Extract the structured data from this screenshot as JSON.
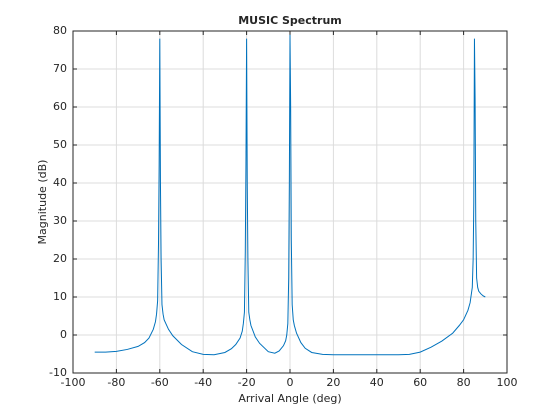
{
  "chart_data": {
    "type": "line",
    "title": "MUSIC Spectrum",
    "xlabel": "Arrival Angle (deg)",
    "ylabel": "Magnitude (dB)",
    "xlim": [
      -100,
      100
    ],
    "xticks": [
      -100,
      -80,
      -60,
      -40,
      -20,
      0,
      20,
      40,
      60,
      80,
      100
    ],
    "ylim": [
      -10,
      80
    ],
    "yticks": [
      -10,
      0,
      10,
      20,
      30,
      40,
      50,
      60,
      70,
      80
    ],
    "grid": true,
    "series": [
      {
        "color": "#0072bd",
        "x": [
          -90,
          -85,
          -80,
          -75,
          -70,
          -67,
          -65,
          -63,
          -62,
          -61.5,
          -61,
          -60.6,
          -60.3,
          -60,
          -59.7,
          -59.4,
          -59,
          -58.5,
          -58,
          -56,
          -54,
          -50,
          -45,
          -40,
          -35,
          -30,
          -27,
          -25,
          -23,
          -22,
          -21.5,
          -21,
          -20.6,
          -20.3,
          -20,
          -19.7,
          -19.4,
          -19,
          -18.5,
          -18,
          -16,
          -14,
          -10,
          -7,
          -5,
          -3,
          -2,
          -1.5,
          -1,
          -0.6,
          -0.3,
          0,
          0.3,
          0.6,
          1,
          1.5,
          2,
          3,
          5,
          7,
          10,
          15,
          20,
          30,
          40,
          50,
          55,
          60,
          65,
          70,
          75,
          78,
          80,
          82,
          83,
          84,
          84.4,
          84.7,
          85,
          85.3,
          85.6,
          86,
          86.5,
          87,
          88,
          89,
          90
        ],
        "values": [
          -4.5,
          -4.5,
          -4.3,
          -3.8,
          -3,
          -2,
          -0.8,
          1.5,
          3.5,
          5.5,
          9,
          24,
          45,
          78,
          40,
          20,
          8,
          5.5,
          4,
          1.5,
          -0.2,
          -2.5,
          -4.4,
          -5.1,
          -5.2,
          -4.6,
          -3.6,
          -2.5,
          -0.8,
          1,
          3,
          6,
          22,
          45,
          78,
          40,
          20,
          6,
          4,
          2.5,
          -0.5,
          -2.2,
          -4.4,
          -4.8,
          -4.2,
          -2.8,
          -1.5,
          0,
          3,
          15,
          40,
          79,
          60,
          25,
          8,
          4,
          2.5,
          0.5,
          -2,
          -3.5,
          -4.6,
          -5.1,
          -5.2,
          -5.2,
          -5.2,
          -5.2,
          -5.1,
          -4.5,
          -3.2,
          -1.6,
          0.5,
          2.5,
          4,
          6.5,
          8.5,
          12.5,
          20,
          35,
          78,
          62,
          30,
          15,
          12.5,
          11.5,
          10.8,
          10.3,
          10
        ]
      }
    ]
  }
}
